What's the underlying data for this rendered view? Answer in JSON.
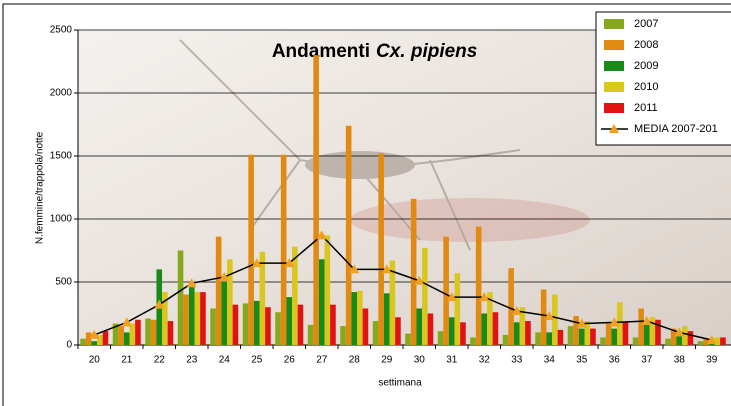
{
  "chart_data": {
    "type": "bar",
    "title": "Andamenti",
    "title_species": "Cx. pipiens",
    "y_label": "N.femmine/trappola/notte",
    "x_label": "settimana",
    "categories": [
      "20",
      "21",
      "22",
      "23",
      "24",
      "25",
      "26",
      "27",
      "28",
      "29",
      "30",
      "31",
      "32",
      "33",
      "34",
      "35",
      "36",
      "37",
      "38",
      "39"
    ],
    "series": [
      {
        "name": "2007",
        "color": "#86a81c",
        "values": [
          50,
          170,
          210,
          750,
          290,
          330,
          260,
          160,
          150,
          190,
          90,
          110,
          60,
          80,
          100,
          150,
          60,
          60,
          50,
          30
        ]
      },
      {
        "name": "2008",
        "color": "#e08a12",
        "values": [
          100,
          150,
          200,
          400,
          860,
          1510,
          1510,
          2300,
          1740,
          1520,
          1160,
          860,
          940,
          610,
          440,
          230,
          170,
          290,
          130,
          50
        ]
      },
      {
        "name": "2009",
        "color": "#178a17",
        "values": [
          30,
          100,
          600,
          460,
          500,
          350,
          380,
          680,
          420,
          410,
          290,
          220,
          250,
          180,
          100,
          130,
          130,
          170,
          70,
          20
        ]
      },
      {
        "name": "2010",
        "color": "#d9c61e",
        "values": [
          80,
          170,
          420,
          420,
          680,
          740,
          780,
          870,
          430,
          670,
          770,
          570,
          420,
          300,
          400,
          190,
          340,
          220,
          150,
          60
        ]
      },
      {
        "name": "2011",
        "color": "#e01212",
        "values": [
          110,
          200,
          190,
          420,
          320,
          300,
          320,
          320,
          290,
          220,
          250,
          180,
          260,
          190,
          120,
          130,
          180,
          200,
          110,
          60
        ]
      },
      {
        "name": "MEDIA 2007-201",
        "color": "#000000",
        "marker_color": "#f0a020",
        "kind": "line",
        "values": [
          80,
          180,
          320,
          490,
          540,
          650,
          650,
          870,
          600,
          600,
          510,
          380,
          380,
          270,
          230,
          170,
          180,
          190,
          100,
          40
        ]
      }
    ],
    "ylim": [
      0,
      2500
    ],
    "yticks": [
      0,
      500,
      1000,
      1500,
      2000,
      2500
    ],
    "grid": true
  }
}
